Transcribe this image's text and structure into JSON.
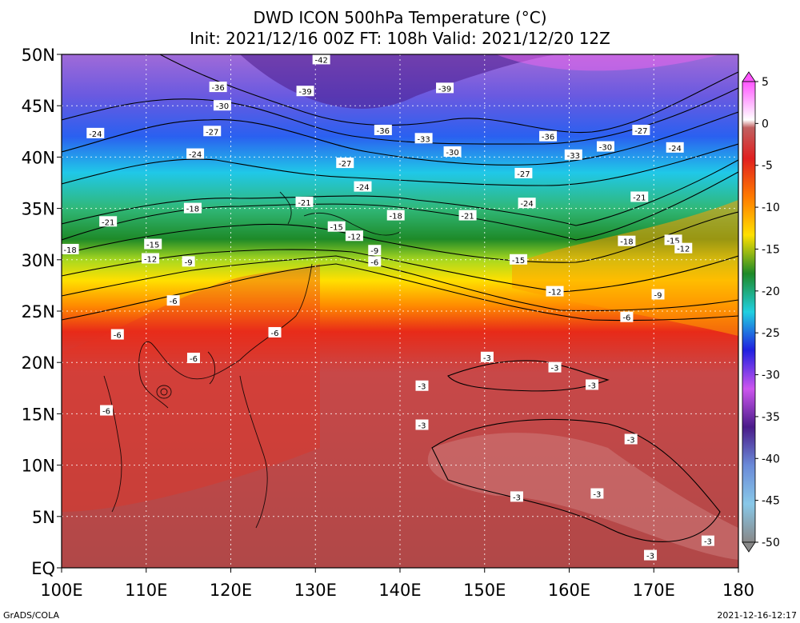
{
  "header": {
    "title_line1": "DWD ICON 500hPa Temperature (°C)",
    "title_line2": "Init: 2021/12/16 00Z  FT: 108h  Valid: 2021/12/20 12Z"
  },
  "footer": {
    "left": "GrADS/COLA",
    "right": "2021-12-16-12:17"
  },
  "map": {
    "lon_ticks": [
      "100E",
      "110E",
      "120E",
      "130E",
      "140E",
      "150E",
      "160E",
      "170E",
      "180"
    ],
    "lat_ticks": [
      "EQ",
      "5N",
      "10N",
      "15N",
      "20N",
      "25N",
      "30N",
      "35N",
      "40N",
      "45N",
      "50N"
    ],
    "lon_range": [
      100,
      180
    ],
    "lat_range": [
      0,
      50
    ],
    "grid": "dotted",
    "contour_interval": 3,
    "contour_labels": [
      {
        "lon": 130.7,
        "lat": 49.5,
        "text": "-42"
      },
      {
        "lon": 118.5,
        "lat": 46.8,
        "text": "-36"
      },
      {
        "lon": 128.8,
        "lat": 46.4,
        "text": "-39"
      },
      {
        "lon": 145.3,
        "lat": 46.7,
        "text": "-39"
      },
      {
        "lon": 119.0,
        "lat": 45.0,
        "text": "-30"
      },
      {
        "lon": 104.0,
        "lat": 42.3,
        "text": "-24"
      },
      {
        "lon": 117.8,
        "lat": 42.5,
        "text": "-27"
      },
      {
        "lon": 138.0,
        "lat": 42.6,
        "text": "-36"
      },
      {
        "lon": 142.8,
        "lat": 41.8,
        "text": "-33"
      },
      {
        "lon": 157.5,
        "lat": 42.0,
        "text": "-36"
      },
      {
        "lon": 168.5,
        "lat": 42.6,
        "text": "-27"
      },
      {
        "lon": 115.8,
        "lat": 40.3,
        "text": "-24"
      },
      {
        "lon": 146.2,
        "lat": 40.5,
        "text": "-30"
      },
      {
        "lon": 164.3,
        "lat": 41.0,
        "text": "-30"
      },
      {
        "lon": 172.5,
        "lat": 40.9,
        "text": "-24"
      },
      {
        "lon": 160.5,
        "lat": 40.2,
        "text": "-33"
      },
      {
        "lon": 133.5,
        "lat": 39.4,
        "text": "-27"
      },
      {
        "lon": 154.6,
        "lat": 38.4,
        "text": "-27"
      },
      {
        "lon": 135.6,
        "lat": 37.1,
        "text": "-24"
      },
      {
        "lon": 168.3,
        "lat": 36.1,
        "text": "-21"
      },
      {
        "lon": 128.7,
        "lat": 35.6,
        "text": "-21"
      },
      {
        "lon": 115.5,
        "lat": 35.0,
        "text": "-18"
      },
      {
        "lon": 155.0,
        "lat": 35.5,
        "text": "-24"
      },
      {
        "lon": 139.5,
        "lat": 34.3,
        "text": "-18"
      },
      {
        "lon": 148.0,
        "lat": 34.3,
        "text": "-21"
      },
      {
        "lon": 105.5,
        "lat": 33.7,
        "text": "-21"
      },
      {
        "lon": 132.5,
        "lat": 33.2,
        "text": "-15"
      },
      {
        "lon": 134.6,
        "lat": 32.3,
        "text": "-12"
      },
      {
        "lon": 110.8,
        "lat": 31.5,
        "text": "-15"
      },
      {
        "lon": 101.0,
        "lat": 31.0,
        "text": "-18"
      },
      {
        "lon": 166.8,
        "lat": 31.8,
        "text": "-18"
      },
      {
        "lon": 172.3,
        "lat": 31.9,
        "text": "-15"
      },
      {
        "lon": 173.5,
        "lat": 31.1,
        "text": "-12"
      },
      {
        "lon": 110.5,
        "lat": 30.1,
        "text": "-12"
      },
      {
        "lon": 115.0,
        "lat": 29.8,
        "text": "-9"
      },
      {
        "lon": 137.0,
        "lat": 30.9,
        "text": "-9"
      },
      {
        "lon": 137.0,
        "lat": 29.8,
        "text": "-6"
      },
      {
        "lon": 154.0,
        "lat": 30.0,
        "text": "-15"
      },
      {
        "lon": 158.3,
        "lat": 26.9,
        "text": "-12"
      },
      {
        "lon": 170.5,
        "lat": 26.6,
        "text": "-9"
      },
      {
        "lon": 113.2,
        "lat": 26.0,
        "text": "-6"
      },
      {
        "lon": 166.8,
        "lat": 24.4,
        "text": "-6"
      },
      {
        "lon": 106.6,
        "lat": 22.7,
        "text": "-6"
      },
      {
        "lon": 125.2,
        "lat": 22.9,
        "text": "-6"
      },
      {
        "lon": 115.6,
        "lat": 20.4,
        "text": "-6"
      },
      {
        "lon": 150.3,
        "lat": 20.5,
        "text": "-3"
      },
      {
        "lon": 158.3,
        "lat": 19.5,
        "text": "-3"
      },
      {
        "lon": 142.6,
        "lat": 17.7,
        "text": "-3"
      },
      {
        "lon": 162.7,
        "lat": 17.8,
        "text": "-3"
      },
      {
        "lon": 105.3,
        "lat": 15.3,
        "text": "-6"
      },
      {
        "lon": 142.6,
        "lat": 13.9,
        "text": "-3"
      },
      {
        "lon": 167.3,
        "lat": 12.5,
        "text": "-3"
      },
      {
        "lon": 153.8,
        "lat": 6.9,
        "text": "-3"
      },
      {
        "lon": 163.3,
        "lat": 7.2,
        "text": "-3"
      },
      {
        "lon": 176.4,
        "lat": 2.6,
        "text": "-3"
      },
      {
        "lon": 169.6,
        "lat": 1.2,
        "text": "-3"
      }
    ]
  },
  "colorbar": {
    "ticks": [
      "5",
      "0",
      "-5",
      "-10",
      "-15",
      "-20",
      "-25",
      "-30",
      "-35",
      "-40",
      "-45",
      "-50"
    ],
    "colors": [
      "#ff66ff",
      "#ffffff",
      "#cc6666",
      "#dd2020",
      "#ff7700",
      "#ffd800",
      "#2a9a2a",
      "#22d8d8",
      "#2020ee",
      "#cc55ee",
      "#4a1c8a",
      "#77aadd",
      "#888888"
    ]
  }
}
